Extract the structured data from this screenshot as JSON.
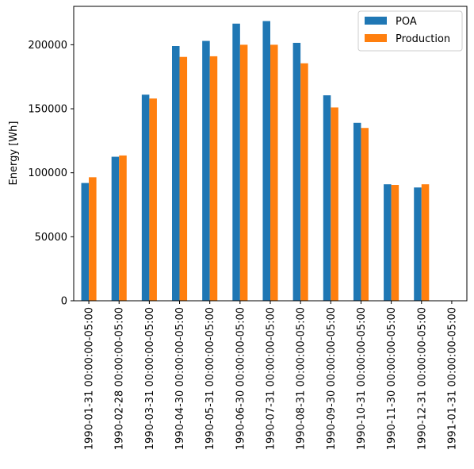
{
  "chart_data": {
    "type": "bar",
    "categories": [
      "1990-01-31 00:00:00-05:00",
      "1990-02-28 00:00:00-05:00",
      "1990-03-31 00:00:00-05:00",
      "1990-04-30 00:00:00-05:00",
      "1990-05-31 00:00:00-05:00",
      "1990-06-30 00:00:00-05:00",
      "1990-07-31 00:00:00-05:00",
      "1990-08-31 00:00:00-05:00",
      "1990-09-30 00:00:00-05:00",
      "1990-10-31 00:00:00-05:00",
      "1990-11-30 00:00:00-05:00",
      "1990-12-31 00:00:00-05:00",
      "1991-01-31 00:00:00-05:00"
    ],
    "series": [
      {
        "name": "POA",
        "color": "#1f77b4",
        "values": [
          92000,
          112500,
          161000,
          199000,
          203000,
          216500,
          218500,
          201500,
          160500,
          139000,
          91000,
          88500,
          0
        ]
      },
      {
        "name": "Production",
        "color": "#ff7f0e",
        "values": [
          96500,
          113500,
          158000,
          190500,
          191000,
          200000,
          200000,
          185500,
          151000,
          135000,
          90500,
          91000,
          0
        ]
      }
    ],
    "title": "",
    "xlabel": "",
    "ylabel": "Energy [Wh]",
    "ylim": [
      0,
      230000
    ],
    "yticks": [
      0,
      50000,
      100000,
      150000,
      200000
    ],
    "grid": false,
    "legend_position": "top-right"
  }
}
